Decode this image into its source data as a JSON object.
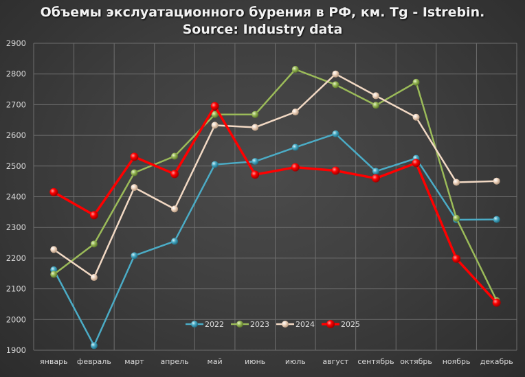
{
  "title": {
    "line1": "Объемы экслуатационного бурения в РФ, км. Tg - Istrebin.",
    "line2": "Source: Industry data"
  },
  "chart_data": {
    "type": "line",
    "title": "Объемы экслуатационного бурения в РФ, км. Tg - Istrebin. Source: Industry data",
    "xlabel": "",
    "ylabel": "",
    "ylim": [
      1900,
      2900
    ],
    "yticks": [
      1900,
      2000,
      2100,
      2200,
      2300,
      2400,
      2500,
      2600,
      2700,
      2800,
      2900
    ],
    "grid": true,
    "legend_position": "bottom-inside",
    "categories": [
      "январь",
      "февраль",
      "март",
      "апрель",
      "май",
      "июнь",
      "июль",
      "август",
      "сентябрь",
      "октябрь",
      "ноябрь",
      "декабрь"
    ],
    "series": [
      {
        "name": "2022",
        "color": "#4bacc6",
        "values": [
          2162,
          1915,
          2208,
          2255,
          2505,
          2515,
          2561,
          2605,
          2483,
          2525,
          2325,
          2326
        ]
      },
      {
        "name": "2023",
        "color": "#9bbb59",
        "values": [
          2147,
          2246,
          2478,
          2532,
          2668,
          2668,
          2815,
          2765,
          2698,
          2773,
          2330,
          2062
        ]
      },
      {
        "name": "2024",
        "color": "#f2d9c4",
        "values": [
          2228,
          2137,
          2430,
          2360,
          2633,
          2626,
          2676,
          2800,
          2729,
          2659,
          2447,
          2451
        ]
      },
      {
        "name": "2025",
        "color": "#ff0000",
        "values": [
          2415,
          2340,
          2530,
          2474,
          2695,
          2472,
          2496,
          2485,
          2460,
          2510,
          2198,
          2055
        ]
      }
    ]
  }
}
